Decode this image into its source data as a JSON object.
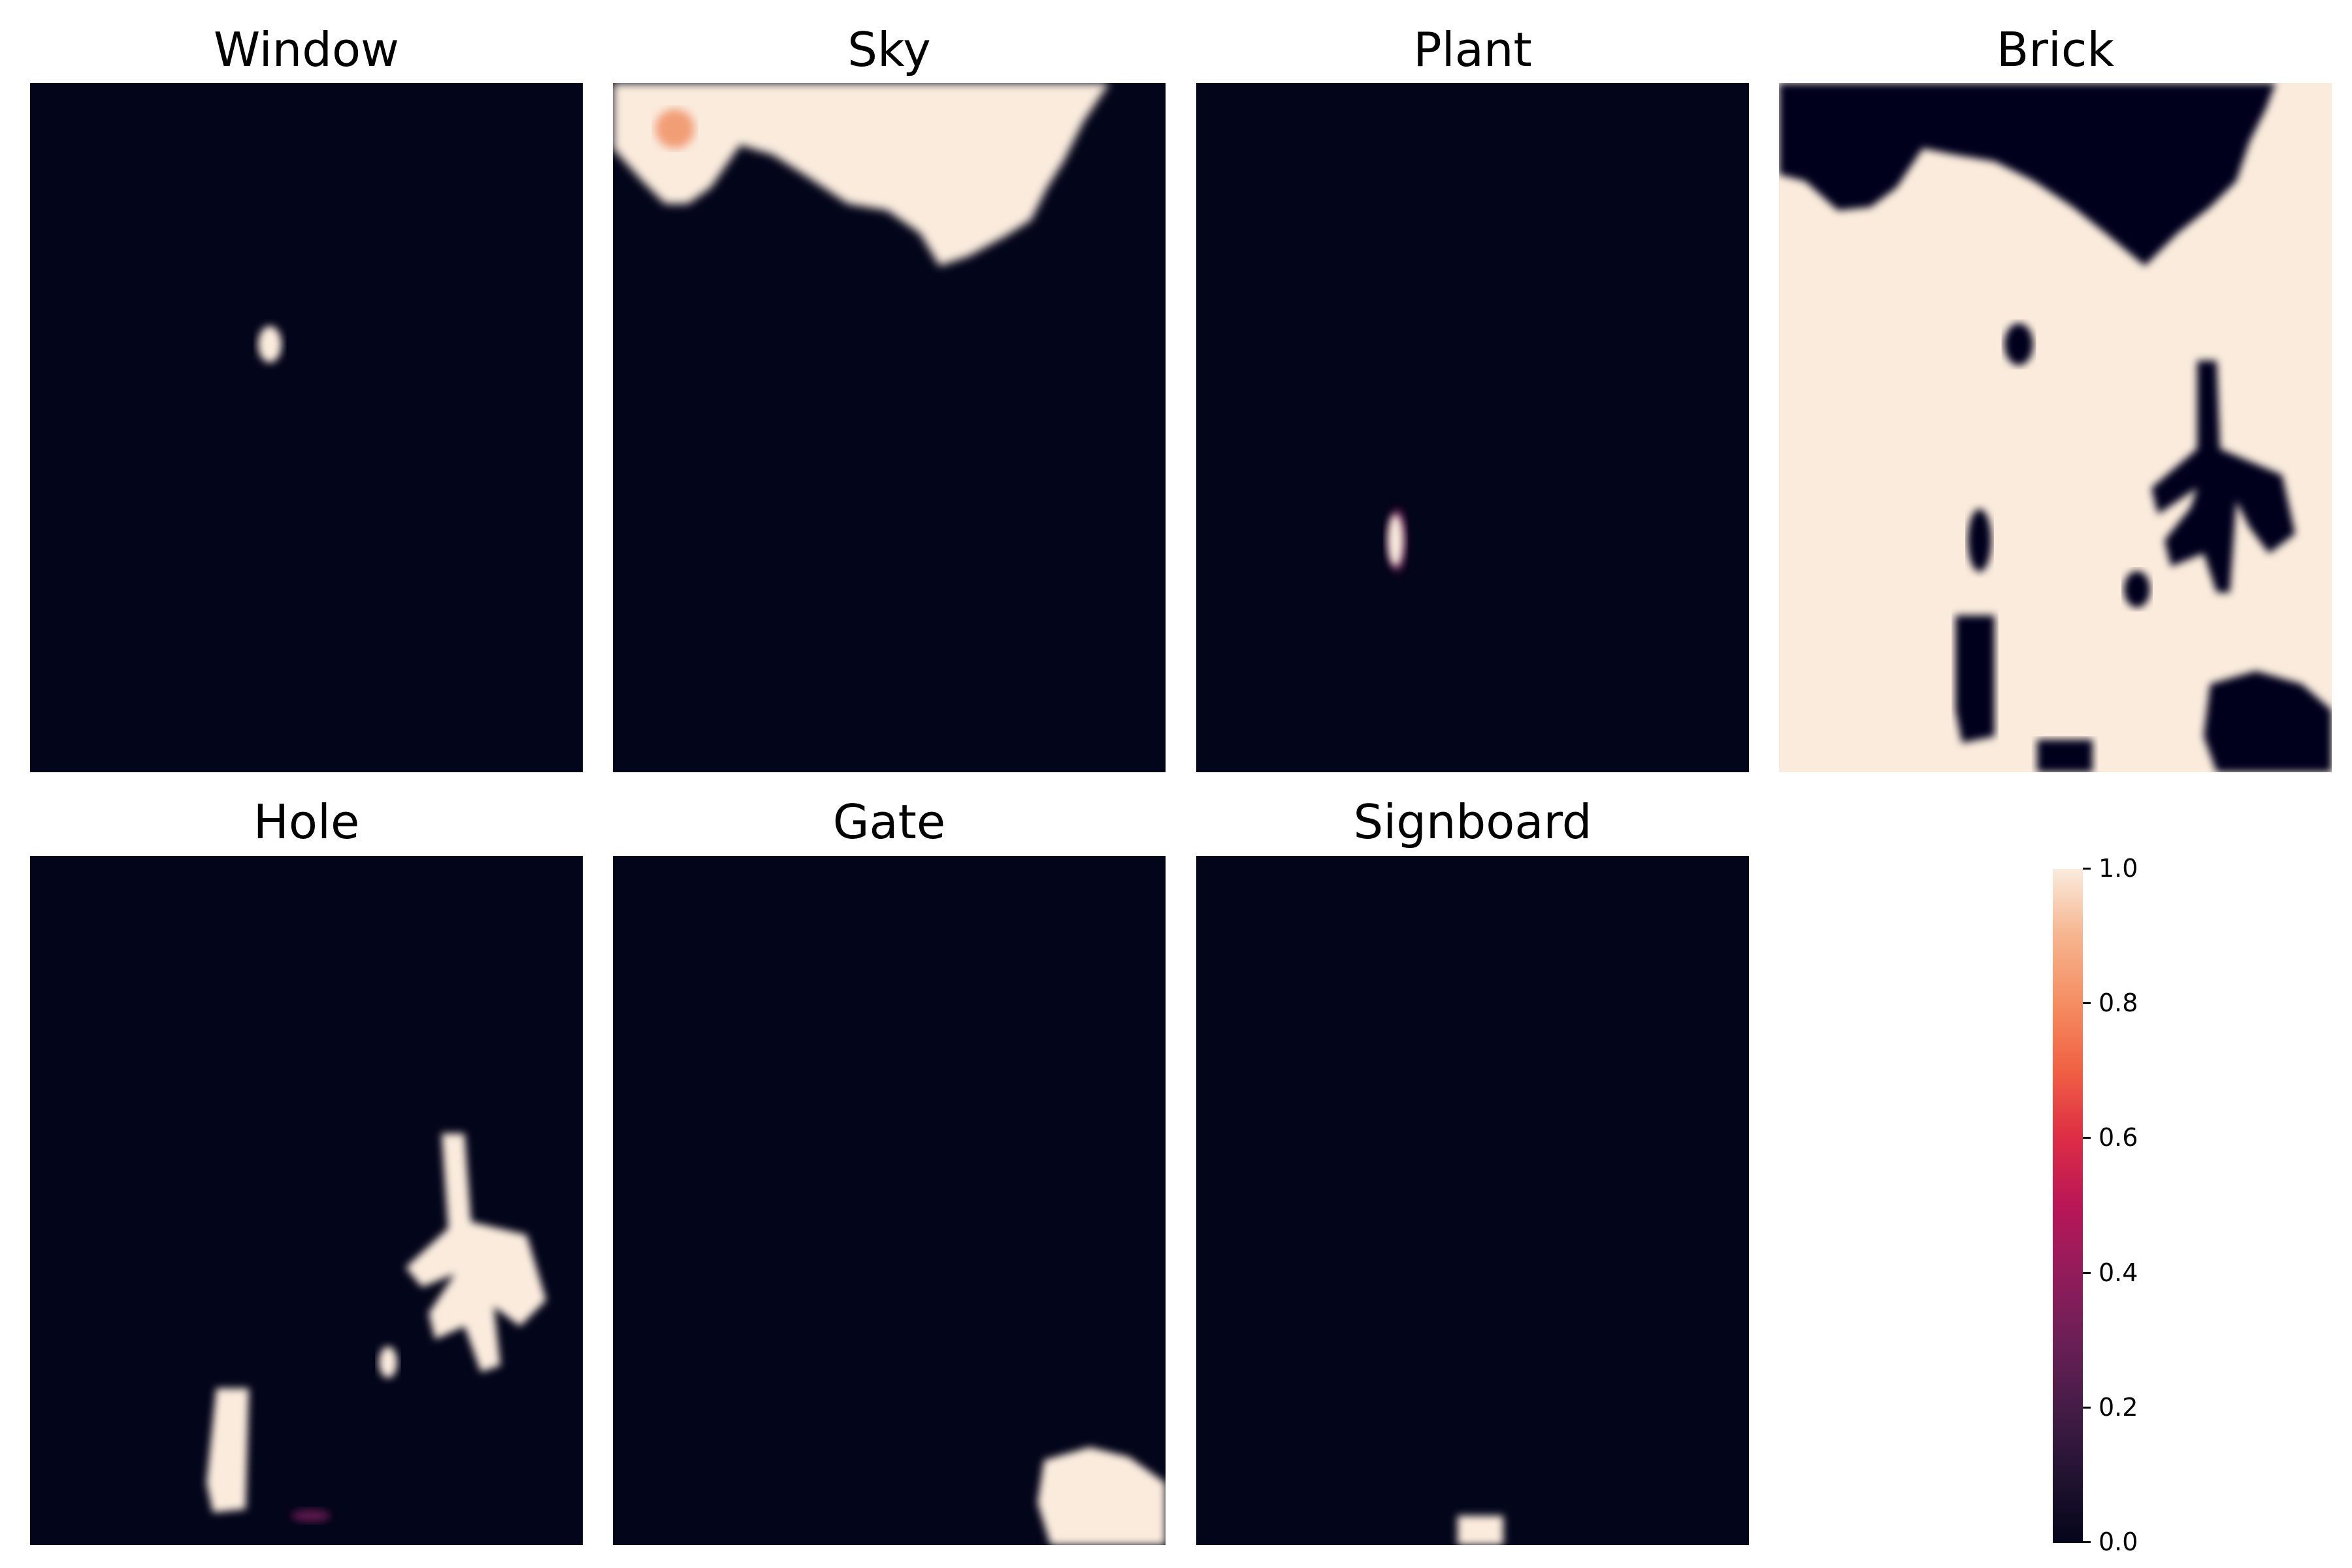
{
  "chart_data": {
    "type": "heatmap",
    "panels": [
      {
        "title": "Window"
      },
      {
        "title": "Sky"
      },
      {
        "title": "Plant"
      },
      {
        "title": "Brick"
      },
      {
        "title": "Hole"
      },
      {
        "title": "Gate"
      },
      {
        "title": "Signboard"
      }
    ],
    "colorbar": {
      "ticks": [
        "0.0",
        "0.2",
        "0.4",
        "0.6",
        "0.8",
        "1.0"
      ],
      "range": [
        0.0,
        1.0
      ],
      "colormap": "rocket",
      "low_color": "#03051a",
      "high_color": "#faebdd"
    }
  }
}
